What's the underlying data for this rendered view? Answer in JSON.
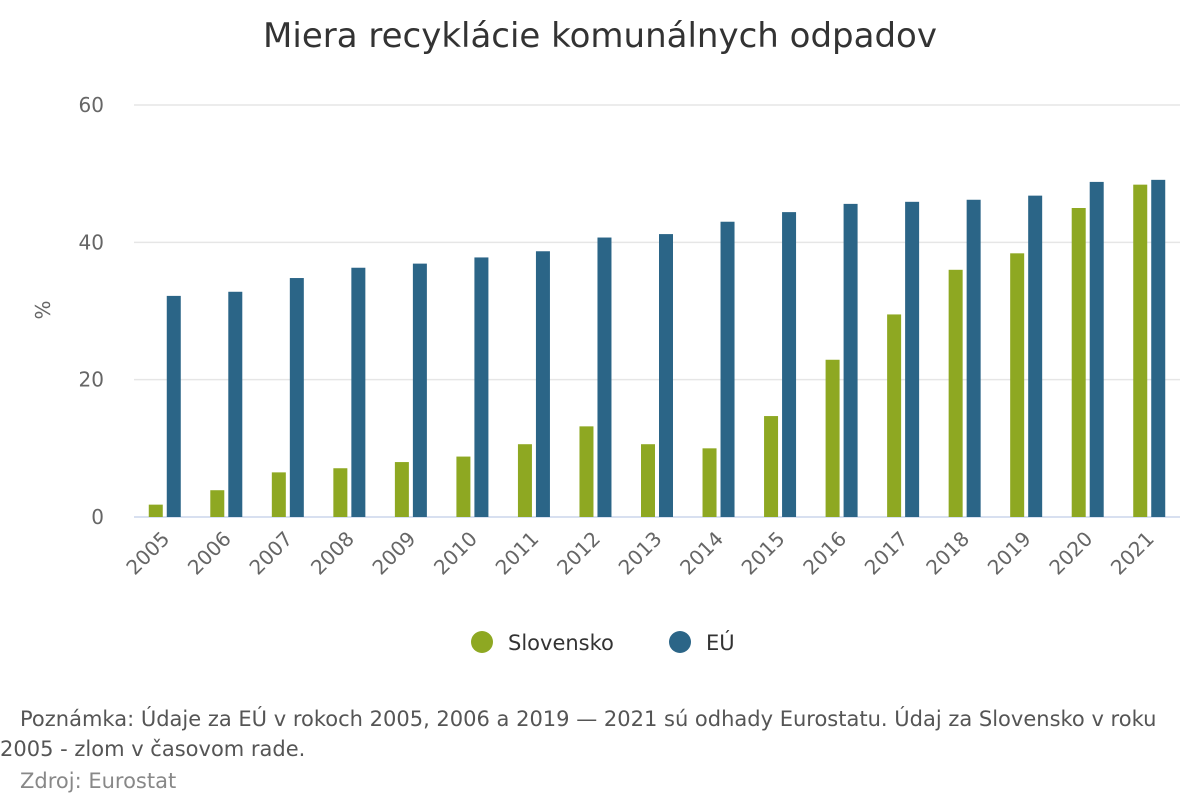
{
  "chart_data": {
    "type": "bar",
    "title": "Miera recyklácie komunálnych odpadov",
    "ylabel": "%",
    "xlabel": "",
    "ylim": [
      0,
      60
    ],
    "yticks": [
      0,
      20,
      40,
      60
    ],
    "grid": true,
    "legend_position": "bottom",
    "categories": [
      "2005",
      "2006",
      "2007",
      "2008",
      "2009",
      "2010",
      "2011",
      "2012",
      "2013",
      "2014",
      "2015",
      "2016",
      "2017",
      "2018",
      "2019",
      "2020",
      "2021"
    ],
    "series": [
      {
        "name": "Slovensko",
        "color": "#8ea822",
        "values": [
          1.8,
          3.9,
          6.5,
          7.1,
          8.0,
          8.8,
          10.6,
          13.2,
          10.6,
          10.0,
          14.7,
          22.9,
          29.5,
          36.0,
          38.4,
          45.0,
          48.4
        ]
      },
      {
        "name": "EÚ",
        "color": "#2b6587",
        "values": [
          32.2,
          32.8,
          34.8,
          36.3,
          36.9,
          37.8,
          38.7,
          40.7,
          41.2,
          43.0,
          44.4,
          45.6,
          45.9,
          46.2,
          46.8,
          48.8,
          49.1
        ]
      }
    ]
  },
  "note": "Poznámka: Údaje za EÚ v rokoch 2005, 2006 a 2019 — 2021 sú odhady Eurostatu. Údaj za Slovensko v roku 2005 - zlom v časovom rade.",
  "source": "Zdroj: Eurostat"
}
